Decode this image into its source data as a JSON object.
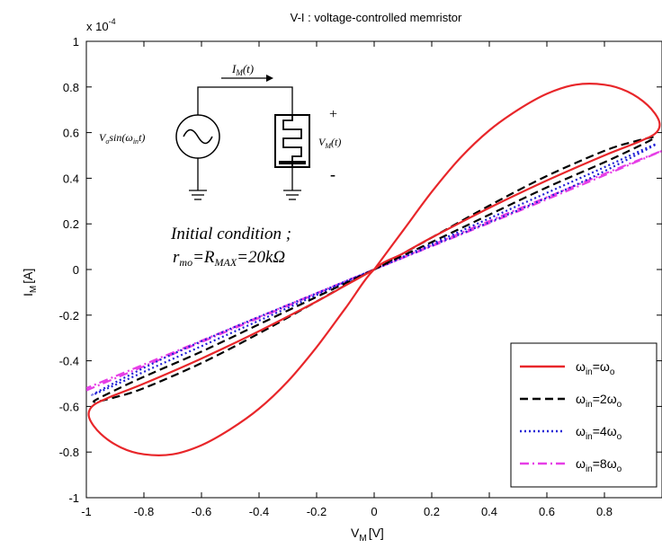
{
  "chart_data": {
    "type": "line",
    "title": "V-I : voltage-controlled memristor",
    "xlabel": "V",
    "xlabel_sub": "M",
    "xlabel_unit": "[V]",
    "ylabel": "I",
    "ylabel_sub": "M",
    "ylabel_unit": "[A]",
    "y_multiplier": "x 10",
    "y_multiplier_exp": "-4",
    "xlim": [
      -1,
      1
    ],
    "ylim": [
      -1,
      1
    ],
    "xticks": [
      -1,
      -0.8,
      -0.6,
      -0.4,
      -0.2,
      0,
      0.2,
      0.4,
      0.6,
      0.8
    ],
    "xtick_labels": [
      "-1",
      "-0.8",
      "-0.6",
      "-0.4",
      "-0.2",
      "0",
      "0.2",
      "0.4",
      "0.6",
      "0.8"
    ],
    "yticks": [
      -1,
      -0.8,
      -0.6,
      -0.4,
      -0.2,
      0,
      0.2,
      0.4,
      0.6,
      0.8,
      1
    ],
    "ytick_labels": [
      "-1",
      "-0.8",
      "-0.6",
      "-0.4",
      "-0.2",
      "0",
      "0.2",
      "0.4",
      "0.6",
      "0.8",
      "1"
    ],
    "grid": false,
    "legend_position": "bottom-right",
    "series": [
      {
        "name_main": "ω",
        "name_sub": "in",
        "name_rest": "=ω",
        "name_sub2": "o",
        "color": "#e8262a",
        "style": "solid",
        "points": [
          [
            0,
            0
          ],
          [
            0.1,
            0.17
          ],
          [
            0.2,
            0.34
          ],
          [
            0.3,
            0.49
          ],
          [
            0.4,
            0.61
          ],
          [
            0.5,
            0.7
          ],
          [
            0.6,
            0.77
          ],
          [
            0.7,
            0.81
          ],
          [
            0.8,
            0.81
          ],
          [
            0.88,
            0.78
          ],
          [
            0.95,
            0.72
          ],
          [
            0.99,
            0.65
          ],
          [
            0.98,
            0.6
          ],
          [
            0.92,
            0.56
          ],
          [
            0.8,
            0.5
          ],
          [
            0.6,
            0.39
          ],
          [
            0.4,
            0.27
          ],
          [
            0.2,
            0.14
          ],
          [
            0.1,
            0.07
          ],
          [
            0,
            0
          ],
          [
            -0.1,
            -0.17
          ],
          [
            -0.2,
            -0.34
          ],
          [
            -0.3,
            -0.49
          ],
          [
            -0.4,
            -0.61
          ],
          [
            -0.5,
            -0.7
          ],
          [
            -0.6,
            -0.77
          ],
          [
            -0.7,
            -0.81
          ],
          [
            -0.8,
            -0.81
          ],
          [
            -0.88,
            -0.78
          ],
          [
            -0.95,
            -0.72
          ],
          [
            -0.99,
            -0.65
          ],
          [
            -0.98,
            -0.6
          ],
          [
            -0.92,
            -0.56
          ],
          [
            -0.8,
            -0.5
          ],
          [
            -0.6,
            -0.39
          ],
          [
            -0.4,
            -0.27
          ],
          [
            -0.2,
            -0.14
          ],
          [
            -0.1,
            -0.07
          ],
          [
            0,
            0
          ]
        ]
      },
      {
        "name_main": "ω",
        "name_sub": "in",
        "name_rest": "=2ω",
        "name_sub2": "o",
        "color": "#000000",
        "style": "dashed",
        "points": [
          [
            0,
            0
          ],
          [
            0.2,
            0.14
          ],
          [
            0.4,
            0.28
          ],
          [
            0.6,
            0.41
          ],
          [
            0.8,
            0.52
          ],
          [
            0.9,
            0.56
          ],
          [
            0.97,
            0.58
          ],
          [
            0.95,
            0.56
          ],
          [
            0.8,
            0.47
          ],
          [
            0.6,
            0.36
          ],
          [
            0.4,
            0.24
          ],
          [
            0.2,
            0.12
          ],
          [
            0,
            0
          ],
          [
            -0.2,
            -0.14
          ],
          [
            -0.4,
            -0.28
          ],
          [
            -0.6,
            -0.41
          ],
          [
            -0.8,
            -0.52
          ],
          [
            -0.9,
            -0.56
          ],
          [
            -0.97,
            -0.58
          ],
          [
            -0.95,
            -0.56
          ],
          [
            -0.8,
            -0.47
          ],
          [
            -0.6,
            -0.36
          ],
          [
            -0.4,
            -0.24
          ],
          [
            -0.2,
            -0.12
          ],
          [
            0,
            0
          ]
        ]
      },
      {
        "name_main": "ω",
        "name_sub": "in",
        "name_rest": "=4ω",
        "name_sub2": "o",
        "color": "#1f1fd6",
        "style": "dotted",
        "points": [
          [
            0,
            0
          ],
          [
            0.25,
            0.14
          ],
          [
            0.5,
            0.28
          ],
          [
            0.75,
            0.42
          ],
          [
            0.98,
            0.55
          ],
          [
            0.75,
            0.4
          ],
          [
            0.5,
            0.26
          ],
          [
            0.25,
            0.13
          ],
          [
            0,
            0
          ],
          [
            -0.25,
            -0.14
          ],
          [
            -0.5,
            -0.28
          ],
          [
            -0.75,
            -0.42
          ],
          [
            -0.98,
            -0.55
          ],
          [
            -0.75,
            -0.4
          ],
          [
            -0.5,
            -0.26
          ],
          [
            -0.25,
            -0.13
          ],
          [
            0,
            0
          ]
        ]
      },
      {
        "name_main": "ω",
        "name_sub": "in",
        "name_rest": "=8ω",
        "name_sub2": "o",
        "color": "#e63ee6",
        "style": "dashdot",
        "points": [
          [
            -1,
            -0.53
          ],
          [
            -0.5,
            -0.265
          ],
          [
            0,
            0
          ],
          [
            0.5,
            0.265
          ],
          [
            1,
            0.52
          ],
          [
            0.5,
            0.255
          ],
          [
            0,
            0
          ],
          [
            -0.5,
            -0.26
          ],
          [
            -1,
            -0.52
          ]
        ]
      }
    ]
  },
  "annotation": {
    "current_label_main": "I",
    "current_label_sub": "M",
    "current_label_rest": "(t)",
    "source_label_main": "V",
    "source_label_sub": "o",
    "source_label_mid": "sin(ω",
    "source_label_sub2": "in",
    "source_label_rest": "t)",
    "voltage_label_main": "V",
    "voltage_label_sub": "M",
    "voltage_label_rest": "(t)",
    "plus": "+",
    "minus": "-",
    "condition_line1": "Initial condition ;",
    "condition_line2_a": "r",
    "condition_line2_a_sub": "mo",
    "condition_line2_b": "=R",
    "condition_line2_b_sub": "MAX",
    "condition_line2_c": "=20kΩ"
  }
}
